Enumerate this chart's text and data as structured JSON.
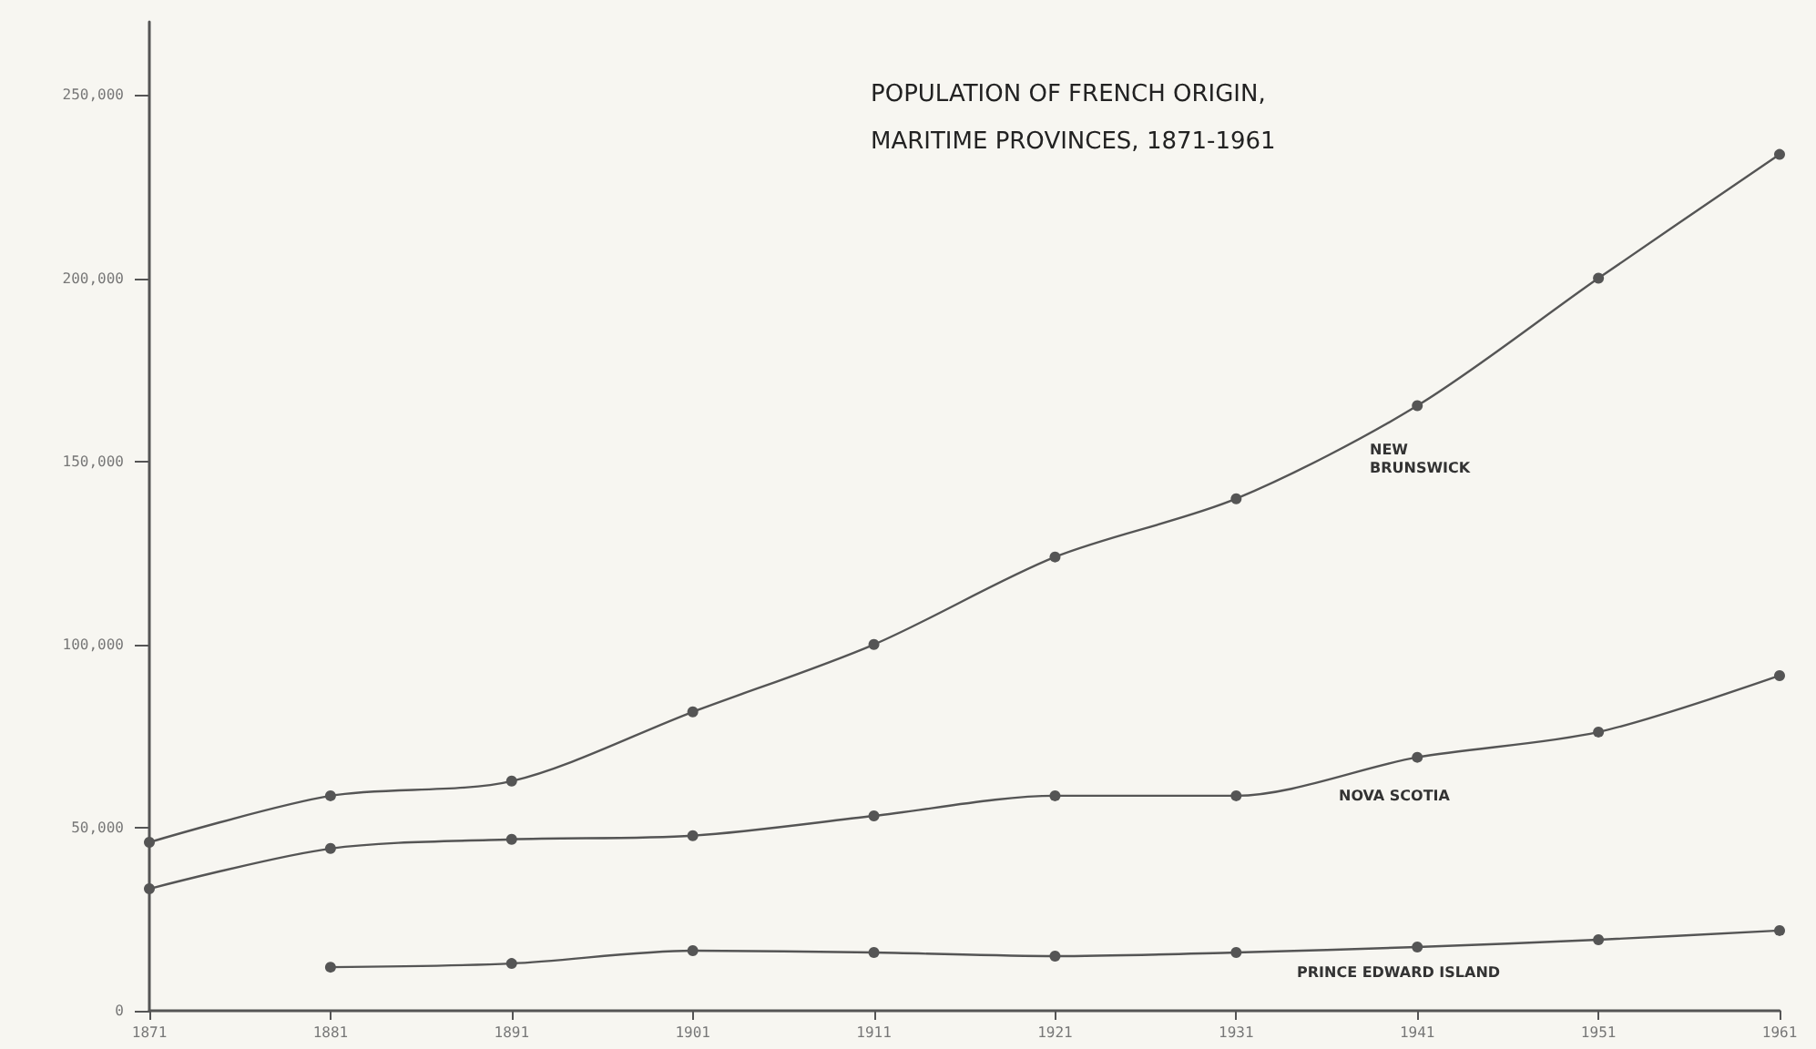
{
  "chart_data": {
    "type": "line",
    "title": "POPULATION OF FRENCH ORIGIN,\nMARITIME PROVINCES, 1871-1961",
    "x": [
      1871,
      1881,
      1891,
      1901,
      1911,
      1921,
      1931,
      1941,
      1951,
      1961
    ],
    "series": [
      {
        "color": "#555555",
        "values": [
          46000,
          58700,
          62700,
          81600,
          100000,
          123900,
          139800,
          165200,
          200000,
          233800
        ]
      },
      {
        "color": "#555555",
        "values": [
          33300,
          44300,
          46800,
          47800,
          53200,
          58700,
          58700,
          69200,
          76100,
          91500
        ]
      },
      {
        "color": "#555555",
        "values": [
          null,
          11900,
          12900,
          16400,
          15900,
          14900,
          15900,
          17400,
          19400,
          21900
        ]
      }
    ],
    "annotations": [
      "NEW\nBRUNSWICK",
      "NOVA SCOTIA",
      "PRINCE EDWARD ISLAND"
    ],
    "xlim": [
      1871,
      1961
    ],
    "xticks": [
      1871,
      1881,
      1891,
      1901,
      1911,
      1921,
      1931,
      1941,
      1951,
      1961
    ],
    "ylim": [
      0,
      270000
    ],
    "yticks": [
      0,
      {
        "value": 50000,
        "label": "50,000"
      },
      {
        "value": 100000,
        "label": "100,000"
      },
      {
        "value": 150000,
        "label": "150,000"
      },
      {
        "value": 200000,
        "label": "200,000"
      },
      {
        "value": 250000,
        "label": "250,000"
      }
    ],
    "marker": "circle",
    "grid": false
  }
}
